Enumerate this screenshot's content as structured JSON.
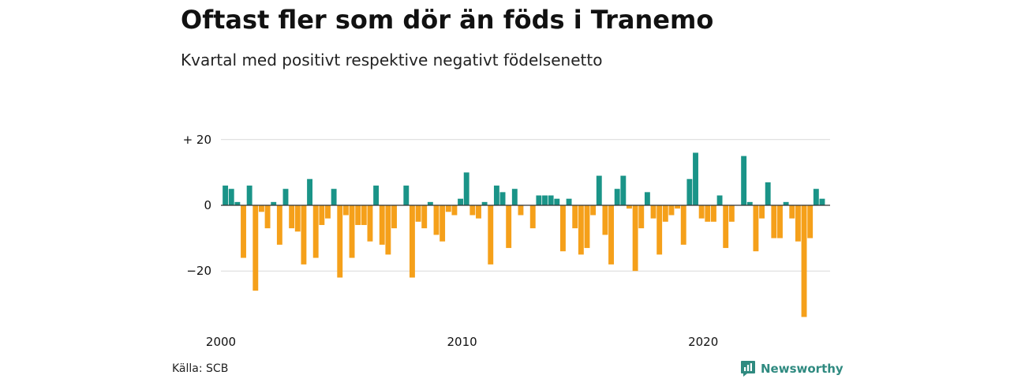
{
  "title": "Oftast fler som dör än föds i Tranemo",
  "subtitle": "Kvartal med positivt respektive negativt födelsenetto",
  "source": "Källa: SCB",
  "brand": "Newsworthy",
  "colors": {
    "positive": "#1a9488",
    "negative": "#f5a01a",
    "grid": "#d9d9d9",
    "zero_line": "#333333"
  },
  "chart_data": {
    "type": "bar",
    "x_axis": {
      "ticks": [
        2000,
        2010,
        2020
      ],
      "start": "2000 Q1"
    },
    "y_axis": {
      "ticks": [
        {
          "value": 20,
          "label": "+ 20"
        },
        {
          "value": 0,
          "label": "0"
        },
        {
          "value": -20,
          "label": "−20"
        }
      ],
      "ylim": [
        -35,
        22
      ]
    },
    "grid": true,
    "values": [
      6,
      5,
      1,
      -16,
      6,
      -26,
      -2,
      -7,
      1,
      -12,
      5,
      -7,
      -8,
      -18,
      8,
      -16,
      -6,
      -4,
      5,
      -22,
      -3,
      -16,
      -6,
      -6,
      -11,
      6,
      -12,
      -15,
      -7,
      0,
      6,
      -22,
      -5,
      -7,
      1,
      -9,
      -11,
      -2,
      -3,
      2,
      10,
      -3,
      -4,
      1,
      -18,
      6,
      4,
      -13,
      5,
      -3,
      0,
      -7,
      3,
      3,
      3,
      2,
      -14,
      2,
      -7,
      -15,
      -13,
      -3,
      9,
      -9,
      -18,
      5,
      9,
      -1,
      -20,
      -7,
      4,
      -4,
      -15,
      -5,
      -3,
      -1,
      -12,
      8,
      16,
      -4,
      -5,
      -5,
      3,
      -13,
      -5,
      0,
      15,
      1,
      -14,
      -4,
      7,
      -10,
      -10,
      1,
      -4,
      -11,
      -34,
      -10,
      5,
      2
    ]
  }
}
